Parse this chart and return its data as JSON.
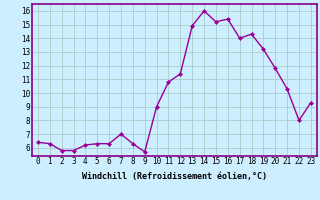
{
  "x": [
    0,
    1,
    2,
    3,
    4,
    5,
    6,
    7,
    8,
    9,
    10,
    11,
    12,
    13,
    14,
    15,
    16,
    17,
    18,
    19,
    20,
    21,
    22,
    23
  ],
  "y": [
    6.4,
    6.3,
    5.8,
    5.8,
    6.2,
    6.3,
    6.3,
    7.0,
    6.3,
    5.7,
    9.0,
    10.8,
    11.4,
    14.9,
    16.0,
    15.2,
    15.4,
    14.0,
    14.3,
    13.2,
    11.8,
    10.3,
    8.0,
    9.3
  ],
  "line_color": "#990099",
  "marker": "D",
  "marker_size": 2.0,
  "bg_color": "#cceeff",
  "grid_color": "#aacccc",
  "xlabel": "Windchill (Refroidissement éolien,°C)",
  "xlabel_fontsize": 6.0,
  "ylim": [
    5.4,
    16.5
  ],
  "xlim": [
    -0.5,
    23.5
  ],
  "yticks": [
    6,
    7,
    8,
    9,
    10,
    11,
    12,
    13,
    14,
    15,
    16
  ],
  "xticks": [
    0,
    1,
    2,
    3,
    4,
    5,
    6,
    7,
    8,
    9,
    10,
    11,
    12,
    13,
    14,
    15,
    16,
    17,
    18,
    19,
    20,
    21,
    22,
    23
  ],
  "tick_fontsize": 5.5,
  "spine_color": "#880088",
  "line_width": 1.0,
  "xlabel_bold": true
}
